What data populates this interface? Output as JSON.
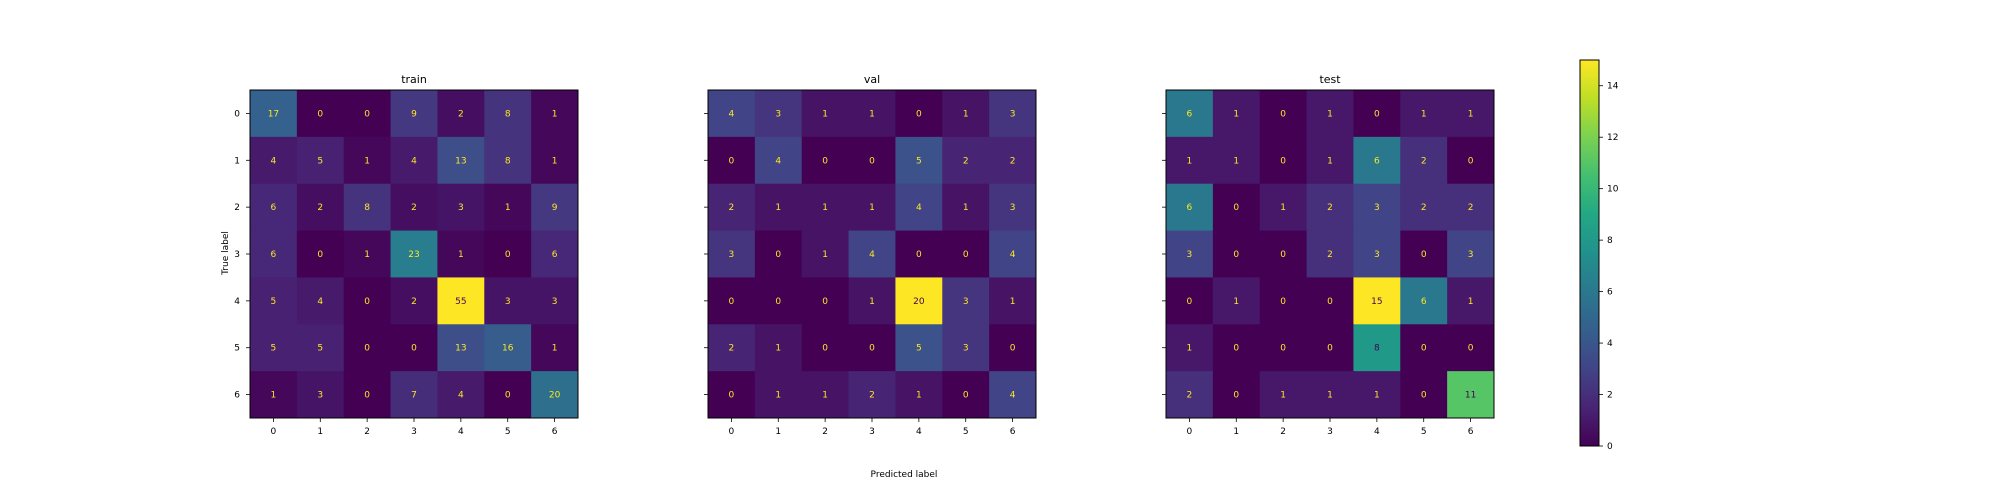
{
  "chart_data": {
    "type": "heatmap",
    "xlabel": "Predicted label",
    "ylabel": "True label",
    "tick_labels": [
      "0",
      "1",
      "2",
      "3",
      "4",
      "5",
      "6"
    ],
    "colormap": "viridis",
    "colorbar": {
      "min": 0,
      "max": 15,
      "ticks": [
        0,
        2,
        4,
        6,
        8,
        10,
        12,
        14
      ]
    },
    "panels": [
      {
        "title": "train",
        "matrix": [
          [
            17,
            0,
            0,
            9,
            2,
            8,
            1
          ],
          [
            4,
            5,
            1,
            4,
            13,
            8,
            1
          ],
          [
            6,
            2,
            8,
            2,
            3,
            1,
            9
          ],
          [
            6,
            0,
            1,
            23,
            1,
            0,
            6
          ],
          [
            5,
            4,
            0,
            2,
            55,
            3,
            3
          ],
          [
            5,
            5,
            0,
            0,
            13,
            16,
            1
          ],
          [
            1,
            3,
            0,
            7,
            4,
            0,
            20
          ]
        ]
      },
      {
        "title": "val",
        "matrix": [
          [
            4,
            3,
            1,
            1,
            0,
            1,
            3
          ],
          [
            0,
            4,
            0,
            0,
            5,
            2,
            2
          ],
          [
            2,
            1,
            1,
            1,
            4,
            1,
            3
          ],
          [
            3,
            0,
            1,
            4,
            0,
            0,
            4
          ],
          [
            0,
            0,
            0,
            1,
            20,
            3,
            1
          ],
          [
            2,
            1,
            0,
            0,
            5,
            3,
            0
          ],
          [
            0,
            1,
            1,
            2,
            1,
            0,
            4
          ]
        ]
      },
      {
        "title": "test",
        "matrix": [
          [
            6,
            1,
            0,
            1,
            0,
            1,
            1
          ],
          [
            1,
            1,
            0,
            1,
            6,
            2,
            0
          ],
          [
            6,
            0,
            1,
            2,
            3,
            2,
            2
          ],
          [
            3,
            0,
            0,
            2,
            3,
            0,
            3
          ],
          [
            0,
            1,
            0,
            0,
            15,
            6,
            1
          ],
          [
            1,
            0,
            0,
            0,
            8,
            0,
            0
          ],
          [
            2,
            0,
            1,
            1,
            1,
            0,
            11
          ]
        ]
      }
    ]
  }
}
